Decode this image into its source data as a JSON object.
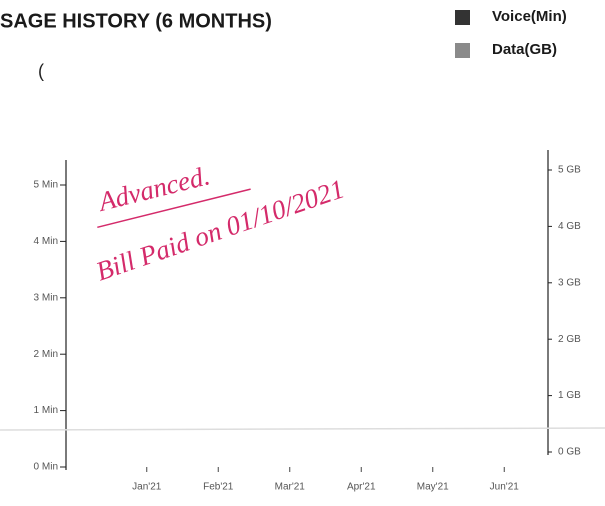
{
  "chart_data": {
    "type": "bar",
    "title": "SAGE HISTORY (6 MONTHS)",
    "categories": [
      "Jan'21",
      "Feb'21",
      "Mar'21",
      "Apr'21",
      "May'21",
      "Jun'21"
    ],
    "series": [
      {
        "name": "Voice(Min)",
        "color": "#333333",
        "values": [
          0,
          0,
          0,
          0,
          0,
          0
        ]
      },
      {
        "name": "Data(GB)",
        "color": "#8a8a8a",
        "axis": "y2",
        "values": [
          0,
          0,
          0,
          0,
          0,
          0
        ]
      }
    ],
    "ylim": [
      0,
      5
    ],
    "yticks": [
      {
        "value": 0,
        "label": "0 Min"
      },
      {
        "value": 1,
        "label": "1 Min"
      },
      {
        "value": 2,
        "label": "2 Min"
      },
      {
        "value": 3,
        "label": "3 Min"
      },
      {
        "value": 4,
        "label": "4 Min"
      },
      {
        "value": 5,
        "label": "5 Min"
      }
    ],
    "y2lim": [
      0,
      5
    ],
    "y2ticks": [
      {
        "value": 0,
        "label": "0 GB"
      },
      {
        "value": 1,
        "label": "1 GB"
      },
      {
        "value": 2,
        "label": "2 GB"
      },
      {
        "value": 3,
        "label": "3 GB"
      },
      {
        "value": 4,
        "label": "4 GB"
      },
      {
        "value": 5,
        "label": "5 GB"
      }
    ],
    "annotations": [
      "Advanced.",
      "Bill Paid on 01/10/2021"
    ]
  }
}
